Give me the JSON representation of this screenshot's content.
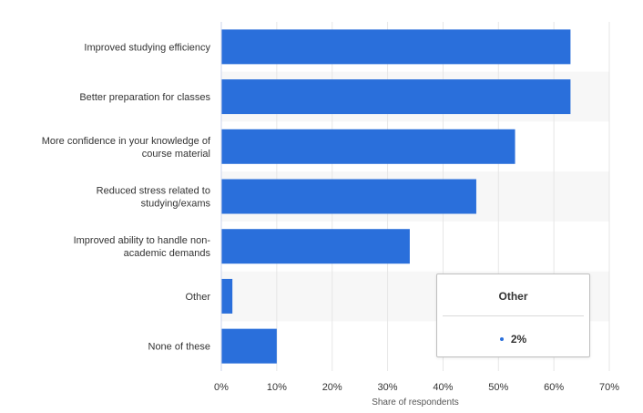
{
  "chart_data": {
    "type": "bar",
    "orientation": "horizontal",
    "categories": [
      [
        "Improved studying efficiency"
      ],
      [
        "Better preparation for classes"
      ],
      [
        "More confidence in your knowledge of",
        "course material"
      ],
      [
        "Reduced stress related to",
        "studying/exams"
      ],
      [
        "Improved ability to handle non-",
        "academic demands"
      ],
      [
        "Other"
      ],
      [
        "None of these"
      ]
    ],
    "values": [
      63,
      63,
      53,
      46,
      34,
      2,
      10
    ],
    "xlabel": "Share of respondents",
    "xlim": [
      0,
      70
    ],
    "xticks": [
      0,
      10,
      20,
      30,
      40,
      50,
      60,
      70
    ],
    "tick_suffix": "%",
    "grid": true,
    "bar_color": "#2a6fdb",
    "band_color": "#f7f7f7"
  },
  "tooltip": {
    "title": "Other",
    "value": "2%",
    "dot_color": "#2a6fdb"
  }
}
